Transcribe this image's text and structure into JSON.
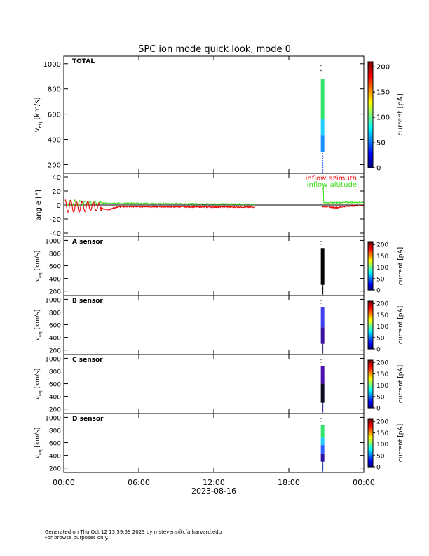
{
  "title": "SPC ion mode quick look, mode 0",
  "footer": {
    "line1": "Generated on Thu Oct 12 13:59:59 2023 by mstevens@cfa.harvard.edu",
    "line2": "For browse purposes only."
  },
  "chart_data": [
    {
      "type": "heatmap",
      "label": "TOTAL",
      "ylabel_main": "v",
      "ylabel_sub": "eq",
      "ylabel_unit": "[km/s]",
      "ylim": [
        130,
        1060
      ],
      "yticks": [
        200,
        400,
        600,
        800,
        1000
      ],
      "time_hours_range": [
        0,
        24
      ],
      "data_time_hours": 20.7,
      "data_vrange": [
        300,
        880
      ],
      "colormap": "rainbow-jet",
      "bands": [
        {
          "vmin": 140,
          "vmax": 300,
          "color": "#3060ff",
          "sparse": true
        },
        {
          "vmin": 300,
          "vmax": 430,
          "color": "#1a90ff"
        },
        {
          "vmin": 430,
          "vmax": 560,
          "color": "#22d0ff"
        },
        {
          "vmin": 560,
          "vmax": 880,
          "color": "#33e36a"
        }
      ],
      "colorbar": {
        "label": "current [pA]",
        "ticks": [
          0,
          50,
          100,
          150,
          200
        ],
        "range": [
          0,
          210
        ]
      }
    },
    {
      "type": "line",
      "ylabel": "angle [°]",
      "ylim": [
        -45,
        45
      ],
      "yticks": [
        -40,
        -20,
        0,
        20,
        40
      ],
      "time_hours_range": [
        0,
        24
      ],
      "series": [
        {
          "name": "inflow azimuth",
          "color": "#ee0000"
        },
        {
          "name": "inflow altitude",
          "color": "#44dd22"
        }
      ],
      "segments": [
        {
          "series": 1,
          "t_start": 0.1,
          "t_end": 15.3,
          "base_start": 3,
          "base_end": 1,
          "oscillation": {
            "t_end": 3,
            "amplitude": 4,
            "period": 0.4
          }
        },
        {
          "series": 0,
          "t_start": 0.1,
          "t_end": 15.3,
          "base_start": -2,
          "base_end": -3,
          "oscillation": {
            "t_end": 3,
            "amplitude": 9,
            "period": 0.45
          },
          "dip": {
            "t": 3.5,
            "value": -8
          }
        },
        {
          "series": 1,
          "t_start": 20.7,
          "t_end": 24,
          "base_start": 3,
          "base_end": 4,
          "spike": {
            "t": 20.72,
            "value": 24
          }
        },
        {
          "series": 0,
          "t_start": 20.7,
          "t_end": 24,
          "base_start": -2,
          "base_end": -1,
          "dip": {
            "t": 21.8,
            "value": -5
          }
        }
      ],
      "zero_line": true
    },
    {
      "type": "heatmap",
      "label": "A sensor",
      "ylabel_main": "v",
      "ylabel_sub": "eq",
      "ylabel_unit": "[km/s]",
      "ylim": [
        130,
        1060
      ],
      "yticks": [
        200,
        400,
        600,
        800,
        1000
      ],
      "data_time_hours": 20.7,
      "bands": [
        {
          "vmin": 150,
          "vmax": 300,
          "color": "#000000",
          "sparse": true
        },
        {
          "vmin": 300,
          "vmax": 880,
          "color": "#000000"
        }
      ],
      "colorbar": {
        "label": "current [pA]",
        "ticks": [
          0,
          50,
          100,
          150,
          200
        ],
        "range": [
          0,
          210
        ]
      }
    },
    {
      "type": "heatmap",
      "label": "B sensor",
      "ylabel_main": "v",
      "ylabel_sub": "eq",
      "ylabel_unit": "[km/s]",
      "ylim": [
        130,
        1060
      ],
      "yticks": [
        200,
        400,
        600,
        800,
        1000
      ],
      "data_time_hours": 20.7,
      "bands": [
        {
          "vmin": 150,
          "vmax": 300,
          "color": "#2a2a60",
          "sparse": true
        },
        {
          "vmin": 300,
          "vmax": 560,
          "color": "#3a10a0"
        },
        {
          "vmin": 560,
          "vmax": 880,
          "color": "#3f3ff0"
        }
      ],
      "colorbar": {
        "label": "current [pA]",
        "ticks": [
          0,
          50,
          100,
          150,
          200
        ],
        "range": [
          0,
          210
        ]
      }
    },
    {
      "type": "heatmap",
      "label": "C sensor",
      "ylabel_main": "v",
      "ylabel_sub": "eq",
      "ylabel_unit": "[km/s]",
      "ylim": [
        130,
        1060
      ],
      "yticks": [
        200,
        400,
        600,
        800,
        1000
      ],
      "data_time_hours": 20.7,
      "bands": [
        {
          "vmin": 150,
          "vmax": 300,
          "color": "#2020a0",
          "sparse": true
        },
        {
          "vmin": 300,
          "vmax": 600,
          "color": "#0a0a20"
        },
        {
          "vmin": 600,
          "vmax": 880,
          "color": "#4a10b0"
        }
      ],
      "colorbar": {
        "label": "current [pA]",
        "ticks": [
          0,
          50,
          100,
          150,
          200
        ],
        "range": [
          0,
          210
        ]
      }
    },
    {
      "type": "heatmap",
      "label": "D sensor",
      "ylabel_main": "v",
      "ylabel_sub": "eq",
      "ylabel_unit": "[km/s]",
      "ylim": [
        130,
        1060
      ],
      "yticks": [
        200,
        400,
        600,
        800,
        1000
      ],
      "data_time_hours": 20.7,
      "bands": [
        {
          "vmin": 150,
          "vmax": 300,
          "color": "#1a3aa0",
          "sparse": true
        },
        {
          "vmin": 300,
          "vmax": 430,
          "color": "#3010a0"
        },
        {
          "vmin": 430,
          "vmax": 560,
          "color": "#2f5cff"
        },
        {
          "vmin": 560,
          "vmax": 680,
          "color": "#22c8ff"
        },
        {
          "vmin": 680,
          "vmax": 880,
          "color": "#33e36a"
        }
      ],
      "colorbar": {
        "label": "current [pA]",
        "ticks": [
          0,
          50,
          100,
          150,
          200
        ],
        "range": [
          0,
          210
        ]
      }
    }
  ],
  "xaxis": {
    "ticks": [
      "00:00",
      "06:00",
      "12:00",
      "18:00",
      "00:00"
    ],
    "tick_hours": [
      0,
      6,
      12,
      18,
      24
    ],
    "date": "2023-08-16"
  }
}
